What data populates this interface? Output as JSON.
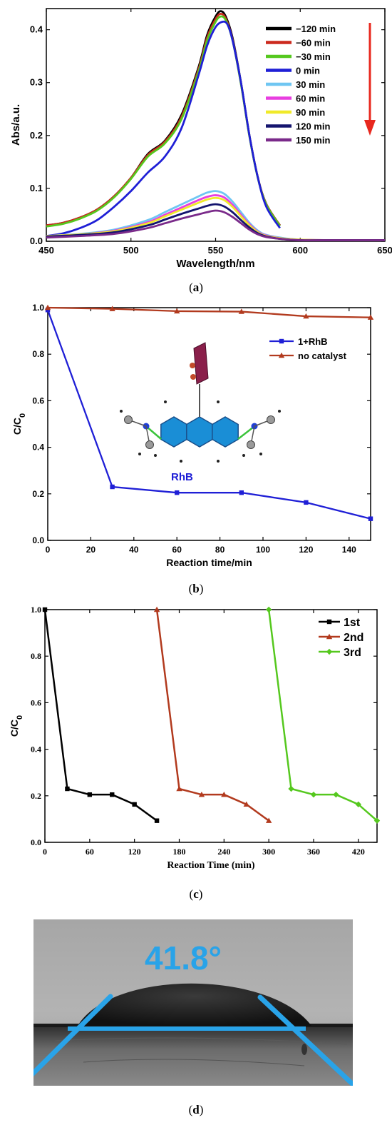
{
  "panels": [
    {
      "caption_open": "(",
      "caption_letter": "a",
      "caption_close": ")"
    },
    {
      "caption_open": "(",
      "caption_letter": "b",
      "caption_close": ")"
    },
    {
      "caption_open": "(",
      "caption_letter": "c",
      "caption_close": ")"
    },
    {
      "caption_open": "(",
      "caption_letter": "d",
      "caption_close": ")"
    }
  ],
  "chart_data": [
    {
      "type": "line",
      "title": "",
      "xlabel": "Wavelength/nm",
      "ylabel": "Abs/a.u.",
      "xlim": [
        450,
        650
      ],
      "ylim": [
        0,
        0.44
      ],
      "xticks": [
        450,
        500,
        550,
        600,
        650
      ],
      "yticks": [
        0.0,
        0.1,
        0.2,
        0.3,
        0.4
      ],
      "legend_position": "top-right",
      "arrow_direction": "down",
      "series": [
        {
          "name": "−120 min",
          "color": "#000000",
          "x": [
            450,
            460,
            470,
            480,
            490,
            500,
            510,
            520,
            530,
            540,
            545,
            550,
            553,
            556,
            560,
            565,
            570,
            575,
            580,
            588
          ],
          "y": [
            0.03,
            0.035,
            0.045,
            0.06,
            0.085,
            0.12,
            0.165,
            0.19,
            0.24,
            0.33,
            0.39,
            0.425,
            0.435,
            0.425,
            0.385,
            0.3,
            0.2,
            0.12,
            0.07,
            0.03
          ]
        },
        {
          "name": "−60 min",
          "color": "#cc2a1e",
          "x": [
            450,
            460,
            470,
            480,
            490,
            500,
            510,
            520,
            530,
            540,
            545,
            550,
            553,
            556,
            560,
            565,
            570,
            575,
            580,
            588
          ],
          "y": [
            0.03,
            0.035,
            0.045,
            0.06,
            0.085,
            0.12,
            0.163,
            0.188,
            0.236,
            0.326,
            0.385,
            0.42,
            0.43,
            0.421,
            0.382,
            0.298,
            0.199,
            0.12,
            0.07,
            0.03
          ]
        },
        {
          "name": "−30 min",
          "color": "#55c81e",
          "x": [
            450,
            460,
            470,
            480,
            490,
            500,
            510,
            520,
            530,
            540,
            545,
            550,
            553,
            556,
            560,
            565,
            570,
            575,
            580,
            588
          ],
          "y": [
            0.028,
            0.033,
            0.043,
            0.058,
            0.083,
            0.118,
            0.16,
            0.185,
            0.232,
            0.322,
            0.38,
            0.415,
            0.425,
            0.418,
            0.38,
            0.297,
            0.198,
            0.119,
            0.069,
            0.029
          ]
        },
        {
          "name": "0 min",
          "color": "#1f1fd6",
          "x": [
            450,
            460,
            470,
            480,
            490,
            500,
            510,
            520,
            530,
            540,
            545,
            550,
            554,
            557,
            560,
            565,
            570,
            575,
            580,
            588
          ],
          "y": [
            0.01,
            0.015,
            0.025,
            0.04,
            0.065,
            0.095,
            0.13,
            0.16,
            0.215,
            0.315,
            0.37,
            0.405,
            0.415,
            0.41,
            0.38,
            0.3,
            0.2,
            0.12,
            0.065,
            0.025
          ]
        },
        {
          "name": "30 min",
          "color": "#6fc6f2",
          "x": [
            450,
            470,
            490,
            510,
            520,
            530,
            540,
            545,
            550,
            555,
            560,
            565,
            570,
            575,
            580,
            590,
            600,
            620,
            650
          ],
          "y": [
            0.01,
            0.014,
            0.022,
            0.04,
            0.055,
            0.07,
            0.085,
            0.092,
            0.095,
            0.09,
            0.075,
            0.055,
            0.035,
            0.02,
            0.012,
            0.006,
            0.003,
            0.002,
            0.002
          ]
        },
        {
          "name": "60 min",
          "color": "#e83ee0",
          "x": [
            450,
            470,
            490,
            510,
            520,
            530,
            540,
            545,
            550,
            555,
            560,
            565,
            570,
            575,
            580,
            590,
            600,
            620,
            650
          ],
          "y": [
            0.01,
            0.013,
            0.02,
            0.036,
            0.05,
            0.064,
            0.078,
            0.084,
            0.087,
            0.083,
            0.069,
            0.05,
            0.032,
            0.018,
            0.011,
            0.005,
            0.003,
            0.002,
            0.002
          ]
        },
        {
          "name": "90 min",
          "color": "#f0ea2a",
          "x": [
            450,
            470,
            490,
            510,
            520,
            530,
            540,
            545,
            550,
            555,
            560,
            565,
            570,
            575,
            580,
            590,
            600,
            620,
            650
          ],
          "y": [
            0.01,
            0.013,
            0.019,
            0.034,
            0.047,
            0.06,
            0.073,
            0.079,
            0.082,
            0.078,
            0.065,
            0.047,
            0.03,
            0.017,
            0.01,
            0.005,
            0.003,
            0.002,
            0.002
          ]
        },
        {
          "name": "120 min",
          "color": "#14146e",
          "x": [
            450,
            470,
            490,
            510,
            520,
            530,
            540,
            545,
            550,
            555,
            560,
            565,
            570,
            575,
            580,
            590,
            600,
            620,
            650
          ],
          "y": [
            0.009,
            0.012,
            0.017,
            0.03,
            0.041,
            0.052,
            0.062,
            0.067,
            0.07,
            0.066,
            0.055,
            0.04,
            0.026,
            0.015,
            0.009,
            0.004,
            0.002,
            0.002,
            0.002
          ]
        },
        {
          "name": "150 min",
          "color": "#7a2a8a",
          "x": [
            450,
            470,
            490,
            510,
            520,
            530,
            540,
            545,
            550,
            555,
            560,
            565,
            570,
            575,
            580,
            590,
            600,
            620,
            650
          ],
          "y": [
            0.007,
            0.01,
            0.014,
            0.025,
            0.034,
            0.043,
            0.051,
            0.055,
            0.058,
            0.055,
            0.046,
            0.034,
            0.022,
            0.013,
            0.008,
            0.004,
            0.002,
            0.002,
            0.002
          ]
        }
      ]
    },
    {
      "type": "line",
      "title": "",
      "xlabel": "Reaction time/min",
      "ylabel": "C/C",
      "ylabel_sub": "0",
      "xlim": [
        0,
        150
      ],
      "ylim": [
        0,
        1.0
      ],
      "xticks": [
        0,
        20,
        40,
        60,
        80,
        100,
        120,
        140
      ],
      "yticks": [
        0.0,
        0.2,
        0.4,
        0.6,
        0.8,
        1.0
      ],
      "legend_position": "top-right",
      "annotation": "RhB",
      "series": [
        {
          "name": "1+RhB",
          "color": "#1f1fd6",
          "marker": "square",
          "x": [
            0,
            30,
            60,
            90,
            120,
            150
          ],
          "y": [
            0.99,
            0.23,
            0.205,
            0.205,
            0.163,
            0.093
          ]
        },
        {
          "name": "no catalyst",
          "color": "#b23a1e",
          "marker": "triangle",
          "x": [
            0,
            30,
            60,
            90,
            120,
            150
          ],
          "y": [
            1.0,
            0.995,
            0.985,
            0.983,
            0.963,
            0.958
          ]
        }
      ]
    },
    {
      "type": "line",
      "title": "",
      "xlabel": "Reaction Time (min)",
      "ylabel": "C/C",
      "ylabel_sub": "0",
      "xlim": [
        0,
        445
      ],
      "ylim": [
        0,
        1.0
      ],
      "xticks": [
        0,
        60,
        120,
        180,
        240,
        300,
        360,
        420
      ],
      "yticks": [
        0.0,
        0.2,
        0.4,
        0.6,
        0.8,
        1.0
      ],
      "legend_position": "top-right",
      "series": [
        {
          "name": "1st",
          "color": "#000000",
          "marker": "square",
          "x": [
            0,
            30,
            60,
            90,
            120,
            150
          ],
          "y": [
            1.0,
            0.23,
            0.205,
            0.205,
            0.163,
            0.093
          ]
        },
        {
          "name": "2nd",
          "color": "#b23a1e",
          "marker": "triangle",
          "x": [
            150,
            180,
            210,
            240,
            270,
            300
          ],
          "y": [
            1.0,
            0.23,
            0.205,
            0.205,
            0.163,
            0.093
          ]
        },
        {
          "name": "3rd",
          "color": "#55c81e",
          "marker": "diamond",
          "x": [
            300,
            330,
            360,
            390,
            420,
            445
          ],
          "y": [
            1.0,
            0.23,
            0.205,
            0.205,
            0.163,
            0.093
          ]
        }
      ]
    }
  ],
  "photo": {
    "angle_label": "41.8°",
    "annotation_color": "#29a3e8"
  }
}
